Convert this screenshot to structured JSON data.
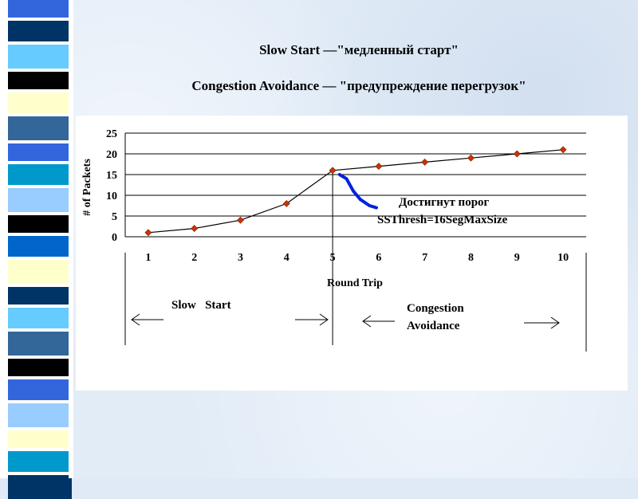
{
  "slide": {
    "title_line1": "Slow Start —\"медленный старт\"",
    "title_line2": "Congestion Avoidance — \"предупреждение перегрузок\""
  },
  "colors": {
    "accent_stripe": [
      "#3366dd",
      "#003366",
      "#66ccff",
      "#000000",
      "#ffffcc",
      "#336699",
      "#0099cc",
      "#99ccff",
      "#0066cc",
      "#ffffff"
    ],
    "curve": "#000000",
    "markers": "#cc3300",
    "drop_line": "#0022dd"
  },
  "chart_data": {
    "type": "line",
    "ylabel": "# of Packets",
    "xlabel": "Round Trip",
    "x": [
      1,
      2,
      3,
      4,
      5,
      6,
      7,
      8,
      9,
      10
    ],
    "y": [
      1,
      2,
      4,
      8,
      16,
      17,
      18,
      19,
      20,
      21
    ],
    "yticks": [
      0,
      5,
      10,
      15,
      20,
      25
    ],
    "ylim": [
      0,
      25
    ],
    "xlim": [
      0.5,
      10.5
    ],
    "drop_series": {
      "x": [
        5.15,
        5.3,
        5.45,
        5.6,
        5.8,
        5.95
      ],
      "y": [
        15,
        14,
        11,
        9,
        7.5,
        7
      ]
    },
    "annotation": {
      "line1": "Достигнут порог",
      "line2": "SSThresh=16SegMaxSize"
    },
    "phases": [
      {
        "label": "Slow   Start"
      },
      {
        "label_line1": "Congestion",
        "label_line2": "Avoidance"
      }
    ],
    "phase_boundary_x": 5
  }
}
